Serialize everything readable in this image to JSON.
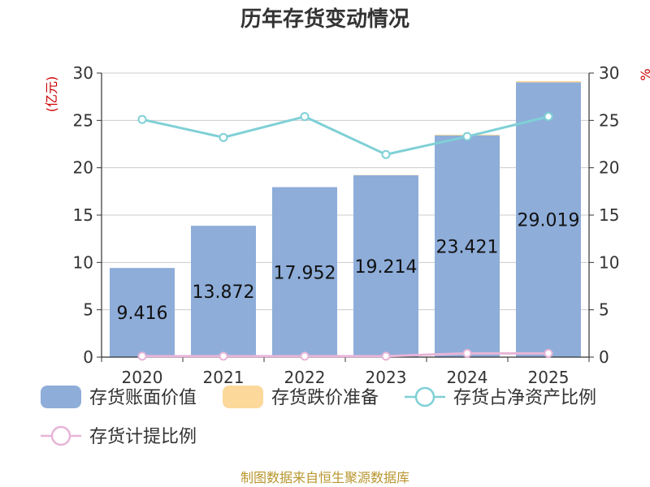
{
  "chart_data": {
    "type": "bar",
    "title": "历年存货变动情况",
    "categories": [
      "2020",
      "2021",
      "2022",
      "2023",
      "2024",
      "2025"
    ],
    "left_axis": {
      "unit_label": "(亿元)",
      "ylim": [
        0,
        30
      ],
      "ticks": [
        0,
        5,
        10,
        15,
        20,
        25,
        30
      ]
    },
    "right_axis": {
      "unit_label": "%",
      "ylim": [
        0,
        30
      ],
      "ticks": [
        0,
        5,
        10,
        15,
        20,
        25,
        30
      ]
    },
    "series": [
      {
        "name": "存货账面价值",
        "kind": "bar",
        "axis": "left",
        "color": "#8eadd9",
        "values": [
          9.416,
          13.872,
          17.952,
          19.214,
          23.421,
          29.019
        ],
        "labels": [
          "9.416",
          "13.872",
          "17.952",
          "19.214",
          "23.421",
          "29.019"
        ]
      },
      {
        "name": "存货跌价准备",
        "kind": "bar-stacked",
        "axis": "left",
        "color": "#fcd89a",
        "values": [
          0,
          0,
          0,
          0.03,
          0.08,
          0.13
        ]
      },
      {
        "name": "存货占净资产比例",
        "kind": "line",
        "axis": "right",
        "color": "#7fd0d6",
        "values": [
          25.1,
          23.2,
          25.4,
          21.4,
          23.3,
          25.4
        ]
      },
      {
        "name": "存货计提比例",
        "kind": "line",
        "axis": "right",
        "color": "#e7b5d8",
        "values": [
          0.1,
          0.1,
          0.1,
          0.1,
          0.4,
          0.4
        ]
      }
    ],
    "grid": true,
    "legend_position": "bottom"
  },
  "source": "制图数据来自恒生聚源数据库"
}
